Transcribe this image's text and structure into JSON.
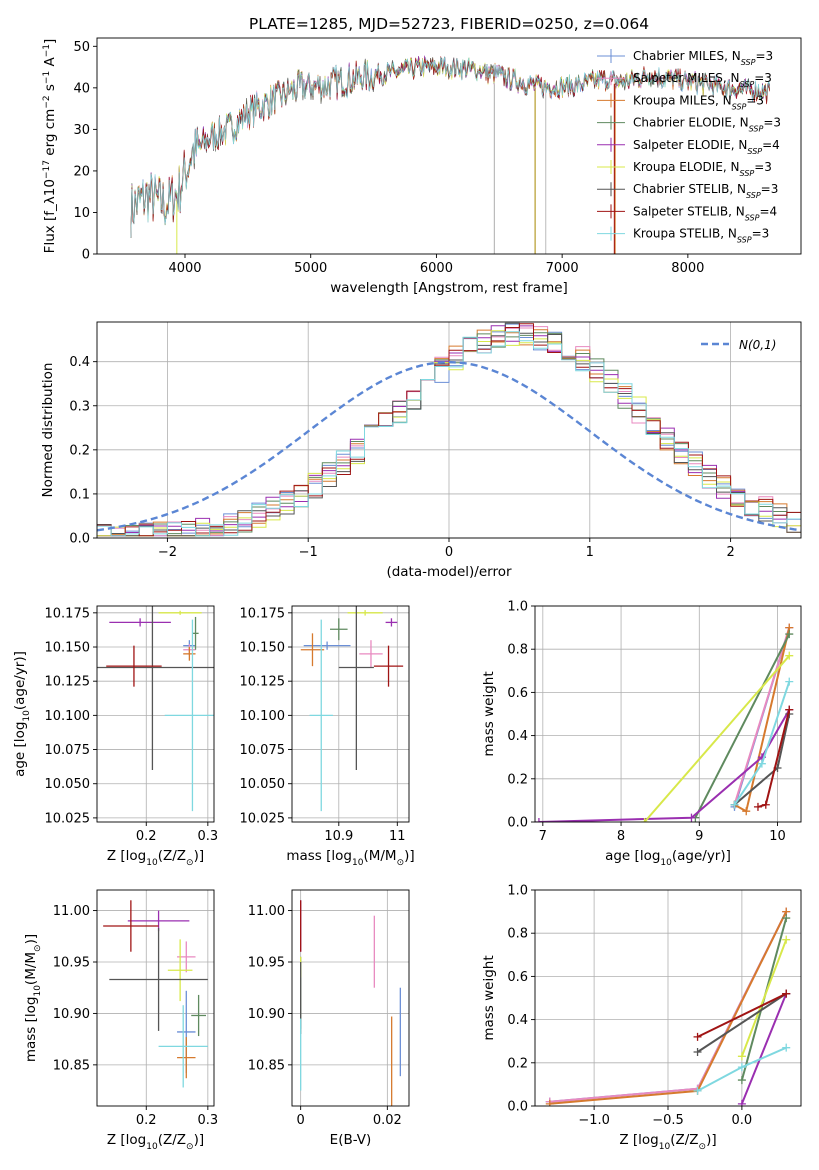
{
  "figure": {
    "title": "PLATE=1285, MJD=52723, FIBERID=0250, z=0.064"
  },
  "series_styles": [
    {
      "name": "Chabrier MILES",
      "nssp": "3",
      "color": "#6b8fd6"
    },
    {
      "name": "Salpeter MILES",
      "nssp": "3",
      "color": "#e88ac0"
    },
    {
      "name": "Kroupa MILES",
      "nssp": "3",
      "color": "#d67a2e"
    },
    {
      "name": "Chabrier ELODIE",
      "nssp": "3",
      "color": "#5f8a5f"
    },
    {
      "name": "Salpeter ELODIE",
      "nssp": "4",
      "color": "#9a2fb0"
    },
    {
      "name": "Kroupa ELODIE",
      "nssp": "3",
      "color": "#d8e84a"
    },
    {
      "name": "Chabrier STELIB",
      "nssp": "3",
      "color": "#555555"
    },
    {
      "name": "Salpeter STELIB",
      "nssp": "4",
      "color": "#a01414"
    },
    {
      "name": "Kroupa STELIB",
      "nssp": "3",
      "color": "#7fd8e0"
    }
  ],
  "chart_data": [
    {
      "id": "spectrum",
      "type": "line",
      "xlabel": "wavelength [Angstrom, rest frame]",
      "ylabel": "Flux [f_λ10^-17 erg cm^-2 s^-1 A^-1]",
      "xlim": [
        3300,
        8900
      ],
      "ylim": [
        0,
        52
      ],
      "xticks": [
        4000,
        5000,
        6000,
        7000,
        8000
      ],
      "yticks": [
        0,
        10,
        20,
        30,
        40,
        50
      ],
      "legend_position": "right",
      "continuum_anchors": {
        "x": [
          3570,
          3700,
          3850,
          3950,
          4050,
          4200,
          4350,
          4500,
          4700,
          4900,
          5100,
          5300,
          5500,
          5700,
          5900,
          6100,
          6300,
          6500,
          6700,
          6900,
          7100,
          7300,
          7500,
          7700,
          7900,
          8100,
          8300,
          8500,
          8650
        ],
        "y": [
          11,
          14,
          12,
          15,
          24,
          28,
          30,
          34,
          37,
          40,
          40.5,
          42,
          43,
          44,
          45,
          45,
          44.5,
          43,
          41,
          40,
          40.5,
          42,
          41.5,
          43,
          42,
          41,
          40,
          39.5,
          39
        ]
      }
    },
    {
      "id": "residual-hist",
      "type": "step-histogram",
      "xlabel": "(data-model)/error",
      "ylabel": "Normed distribution",
      "xlim": [
        -2.5,
        2.5
      ],
      "ylim": [
        0,
        0.49
      ],
      "xticks": [
        -2,
        -1,
        0,
        1,
        2
      ],
      "yticks": [
        0.0,
        0.1,
        0.2,
        0.3,
        0.4
      ],
      "bin_edges": [
        -2.5,
        -2.4,
        -2.3,
        -2.2,
        -2.1,
        -2.0,
        -1.9,
        -1.8,
        -1.7,
        -1.6,
        -1.5,
        -1.4,
        -1.3,
        -1.2,
        -1.1,
        -1.0,
        -0.9,
        -0.8,
        -0.7,
        -0.6,
        -0.5,
        -0.4,
        -0.3,
        -0.2,
        -0.1,
        0.0,
        0.1,
        0.2,
        0.3,
        0.4,
        0.5,
        0.6,
        0.7,
        0.8,
        0.9,
        1.0,
        1.1,
        1.2,
        1.3,
        1.4,
        1.5,
        1.6,
        1.7,
        1.8,
        1.9,
        2.0,
        2.1,
        2.2,
        2.3,
        2.4,
        2.5
      ],
      "reference_curve": {
        "label": "N(0,1)",
        "color": "#5b86d4"
      }
    },
    {
      "id": "age-vs-z",
      "type": "errorbar",
      "xlabel": "Z [log10(Z/Z⊙)]",
      "ylabel": "age [log10(age/yr)]",
      "xlim": [
        0.12,
        0.31
      ],
      "ylim": [
        10.022,
        10.18
      ],
      "xticks": [
        0.2,
        0.3
      ],
      "yticks": [
        10.025,
        10.05,
        10.075,
        10.1,
        10.125,
        10.15,
        10.175
      ],
      "points": [
        {
          "x": 0.27,
          "xerr": 0.01,
          "y": 10.151,
          "yerr": 0.004
        },
        {
          "x": 0.27,
          "xerr": 0.01,
          "y": 10.148,
          "yerr": 0.004
        },
        {
          "x": 0.27,
          "xerr": 0.01,
          "y": 10.145,
          "yerr": 0.005
        },
        {
          "x": 0.28,
          "xerr": 0.005,
          "y": 10.16,
          "yerr": 0.012
        },
        {
          "x": 0.19,
          "xerr": 0.05,
          "y": 10.168,
          "yerr": 0.003
        },
        {
          "x": 0.255,
          "xerr": 0.035,
          "y": 10.175,
          "yerr": 0.0015
        },
        {
          "x": 0.21,
          "xerr": 0.1,
          "y": 10.135,
          "yerr": 0.075
        },
        {
          "x": 0.18,
          "xerr": 0.045,
          "y": 10.136,
          "yerr": 0.015
        },
        {
          "x": 0.275,
          "xerr": 0.045,
          "y": 10.1,
          "yerr": 0.07
        }
      ]
    },
    {
      "id": "age-vs-mass",
      "type": "errorbar",
      "xlabel": "mass [log10(M/M⊙)]",
      "ylabel": "",
      "xlim": [
        10.82,
        11.02
      ],
      "ylim": [
        10.022,
        10.18
      ],
      "xticks": [
        10.9,
        11.0
      ],
      "yticks": [
        10.025,
        10.05,
        10.075,
        10.1,
        10.125,
        10.15,
        10.175
      ],
      "points": [
        {
          "x": 10.88,
          "xerr": 0.04,
          "y": 10.151,
          "yerr": 0.003
        },
        {
          "x": 10.955,
          "xerr": 0.02,
          "y": 10.145,
          "yerr": 0.01
        },
        {
          "x": 10.855,
          "xerr": 0.02,
          "y": 10.148,
          "yerr": 0.012
        },
        {
          "x": 10.9,
          "xerr": 0.015,
          "y": 10.163,
          "yerr": 0.008
        },
        {
          "x": 10.99,
          "xerr": 0.01,
          "y": 10.168,
          "yerr": 0.003
        },
        {
          "x": 10.945,
          "xerr": 0.03,
          "y": 10.175,
          "yerr": 0.002
        },
        {
          "x": 10.93,
          "xerr": 0.03,
          "y": 10.135,
          "yerr": 0.075
        },
        {
          "x": 10.985,
          "xerr": 0.025,
          "y": 10.136,
          "yerr": 0.015
        },
        {
          "x": 10.87,
          "xerr": 0.02,
          "y": 10.1,
          "yerr": 0.07
        }
      ]
    },
    {
      "id": "weight-vs-age",
      "type": "line",
      "xlabel": "age [log10(age/yr)]",
      "ylabel": "mass weight",
      "xlim": [
        6.9,
        10.3
      ],
      "ylim": [
        0,
        1.0
      ],
      "xticks": [
        7,
        8,
        9,
        10
      ],
      "yticks": [
        0.0,
        0.2,
        0.4,
        0.6,
        0.8,
        1.0
      ],
      "series": [
        {
          "x": [
            9.45,
            10.15
          ],
          "y": [
            0.07,
            0.9
          ]
        },
        {
          "x": [
            9.45,
            10.15
          ],
          "y": [
            0.08,
            0.9
          ]
        },
        {
          "x": [
            9.45,
            9.6,
            10.15
          ],
          "y": [
            0.08,
            0.05,
            0.9
          ]
        },
        {
          "x": [
            8.95,
            10.15
          ],
          "y": [
            0.02,
            0.87
          ]
        },
        {
          "x": [
            6.95,
            8.9,
            9.8,
            10.15
          ],
          "y": [
            0.0,
            0.02,
            0.3,
            0.52
          ]
        },
        {
          "x": [
            8.3,
            10.15
          ],
          "y": [
            0.0,
            0.77
          ]
        },
        {
          "x": [
            9.45,
            10.0,
            10.15
          ],
          "y": [
            0.08,
            0.25,
            0.5
          ]
        },
        {
          "x": [
            9.75,
            9.85,
            10.15
          ],
          "y": [
            0.07,
            0.08,
            0.52
          ]
        },
        {
          "x": [
            9.45,
            9.8,
            10.15
          ],
          "y": [
            0.08,
            0.27,
            0.65
          ]
        }
      ]
    },
    {
      "id": "mass-vs-z",
      "type": "errorbar",
      "xlabel": "Z [log10(Z/Z⊙)]",
      "ylabel": "mass [log10(M/M⊙)]",
      "xlim": [
        0.12,
        0.31
      ],
      "ylim": [
        10.81,
        11.02
      ],
      "xticks": [
        0.2,
        0.3
      ],
      "yticks": [
        10.85,
        10.9,
        10.95,
        11.0
      ],
      "points": [
        {
          "x": 0.265,
          "xerr": 0.015,
          "y": 10.882,
          "yerr": 0.04
        },
        {
          "x": 0.265,
          "xerr": 0.015,
          "y": 10.955,
          "yerr": 0.015
        },
        {
          "x": 0.265,
          "xerr": 0.015,
          "y": 10.857,
          "yerr": 0.02
        },
        {
          "x": 0.285,
          "xerr": 0.012,
          "y": 10.898,
          "yerr": 0.02
        },
        {
          "x": 0.22,
          "xerr": 0.05,
          "y": 10.99,
          "yerr": 0.01
        },
        {
          "x": 0.255,
          "xerr": 0.02,
          "y": 10.942,
          "yerr": 0.03
        },
        {
          "x": 0.22,
          "xerr": 0.08,
          "y": 10.933,
          "yerr": 0.05
        },
        {
          "x": 0.175,
          "xerr": 0.045,
          "y": 10.985,
          "yerr": 0.025
        },
        {
          "x": 0.26,
          "xerr": 0.04,
          "y": 10.868,
          "yerr": 0.04
        }
      ]
    },
    {
      "id": "mass-vs-ebv",
      "type": "errorbar",
      "xlabel": "E(B-V)",
      "ylabel": "",
      "xlim": [
        -0.002,
        0.025
      ],
      "ylim": [
        10.81,
        11.02
      ],
      "xticks": [
        0.0,
        0.02
      ],
      "yticks": [
        10.85,
        10.9,
        10.95,
        11.0
      ],
      "points": [
        {
          "x": 0.023,
          "xerr": 0,
          "y": 10.882,
          "yerr": 0.043
        },
        {
          "x": 0.017,
          "xerr": 0,
          "y": 10.96,
          "yerr": 0.035
        },
        {
          "x": 0.021,
          "xerr": 0,
          "y": 10.85,
          "yerr": 0.047
        },
        {
          "x": 0.0,
          "xerr": 0,
          "y": 10.92,
          "yerr": 0.035
        },
        {
          "x": 0.0,
          "xerr": 0,
          "y": 10.985,
          "yerr": 0.025
        },
        {
          "x": 0.0,
          "xerr": 0,
          "y": 10.945,
          "yerr": 0.01
        },
        {
          "x": 0.0,
          "xerr": 0,
          "y": 10.915,
          "yerr": 0.035
        },
        {
          "x": 0.0,
          "xerr": 0,
          "y": 10.985,
          "yerr": 0.025
        },
        {
          "x": 0.0,
          "xerr": 0,
          "y": 10.86,
          "yerr": 0.035
        }
      ]
    },
    {
      "id": "weight-vs-z",
      "type": "line",
      "xlabel": "Z [log10(Z/Z⊙)]",
      "ylabel": "mass weight",
      "xlim": [
        -1.4,
        0.4
      ],
      "ylim": [
        0,
        1.0
      ],
      "xticks": [
        -1.0,
        -0.5,
        0.0
      ],
      "yticks": [
        0.0,
        0.2,
        0.4,
        0.6,
        0.8,
        1.0
      ],
      "series": [
        {
          "x": [
            -1.3,
            -0.3,
            0.3
          ],
          "y": [
            0.02,
            0.08,
            0.9
          ]
        },
        {
          "x": [
            -1.3,
            -0.3,
            0.3
          ],
          "y": [
            0.02,
            0.08,
            0.9
          ]
        },
        {
          "x": [
            -1.3,
            -0.3,
            0.3
          ],
          "y": [
            0.01,
            0.07,
            0.9
          ]
        },
        {
          "x": [
            0.0,
            0.3
          ],
          "y": [
            0.12,
            0.87
          ]
        },
        {
          "x": [
            0.0,
            0.3
          ],
          "y": [
            0.01,
            0.52
          ]
        },
        {
          "x": [
            0.0,
            0.3
          ],
          "y": [
            0.23,
            0.77
          ]
        },
        {
          "x": [
            -0.3,
            0.3
          ],
          "y": [
            0.25,
            0.52
          ]
        },
        {
          "x": [
            -0.3,
            0.3
          ],
          "y": [
            0.32,
            0.52
          ]
        },
        {
          "x": [
            -0.3,
            0.0,
            0.3
          ],
          "y": [
            0.07,
            0.18,
            0.27
          ]
        }
      ]
    }
  ]
}
